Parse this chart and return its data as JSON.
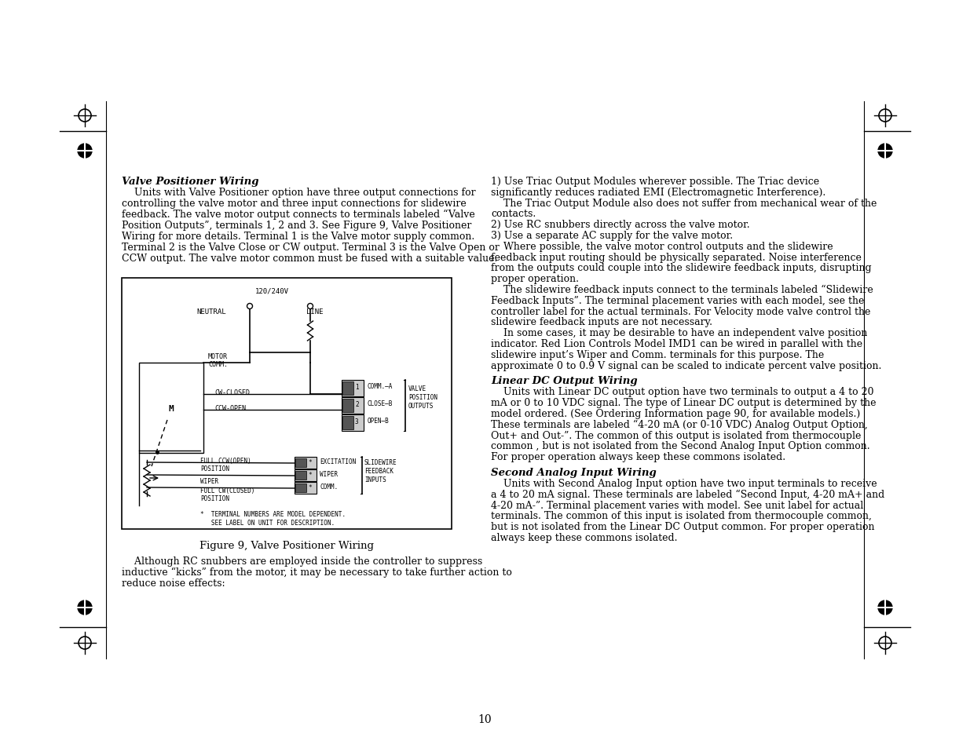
{
  "page_background": "#ffffff",
  "page_number": "10",
  "text_color": "#000000",
  "font_size_body": 9.5,
  "margin_marks": true,
  "left_heading": "Valve Positioner Wiring",
  "right_heading2": "Linear DC Output Wiring",
  "right_heading3": "Second Analog Input Wiring",
  "figure_caption": "Figure 9, Valve Positioner Wiring",
  "page_num_text": "10"
}
